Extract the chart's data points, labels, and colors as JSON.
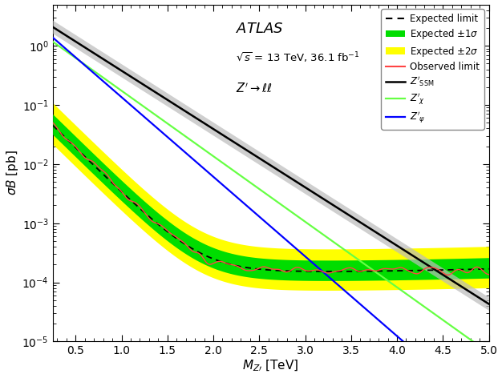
{
  "title": "ATLAS",
  "subtitle1": "\\sqrt{s} = 13 TeV, 36.1 fb^{-1}",
  "subtitle2": "Z' \\rightarrow ll",
  "xlabel": "M_{Z'} [TeV]",
  "ylabel": "\\sigma B [pb]",
  "xlim": [
    0.25,
    5.0
  ],
  "ylim": [
    1e-05,
    5.0
  ],
  "colors": {
    "band1sigma": "#00dd00",
    "band2sigma": "#ffff00",
    "observed": "#ff4444",
    "Zssm": "#000000",
    "Zchi": "#66ff44",
    "Zpsi": "#0000ff",
    "theory_band": "#bbbbbb"
  }
}
